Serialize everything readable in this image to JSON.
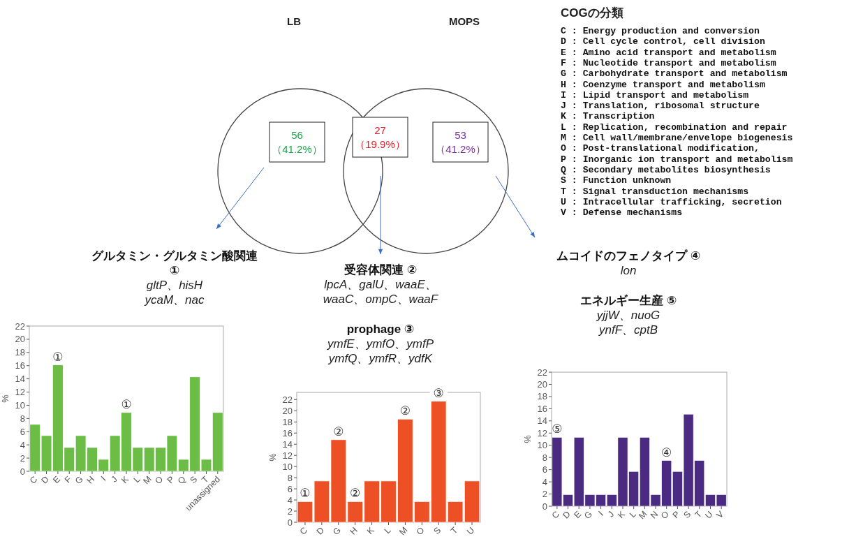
{
  "chart_data": [
    {
      "type": "other",
      "series": [
        {
          "name": "LB"
        },
        {
          "name": "MOPS"
        }
      ],
      "annotations": [
        "56",
        "（41.2%）",
        "27",
        "（19.9%）",
        "53",
        "（41.2%）"
      ],
      "colors": [
        "#1aa64b",
        "#e8202a",
        "#7b2f9e"
      ]
    },
    {
      "type": "other",
      "title": "COGの分類",
      "annotations": [
        "C : Energy production and conversion",
        "D : Cell cycle control, cell division",
        "E : Amino acid transport and metabolism",
        "F : Nucleotide transport and metabolism",
        "G : Carbohydrate transport and metabolism",
        "H : Coenzyme transport and metabolism",
        "I : Lipid transport and metabolism",
        "J : Translation, ribosomal structure",
        "K : Transcription",
        "L : Replication, recombination and repair",
        "M : Cell wall/membrane/envelope biogenesis",
        "O : Post-translational modification,",
        "P : Inorganic ion transport and metabolism",
        "Q : Secondary metabolites biosynthesis",
        "S : Function unknown",
        "T : Signal transduction mechanisms",
        "U : Intracellular trafficking, secretion",
        "V : Defense mechanisms"
      ]
    },
    {
      "type": "bar",
      "ylabel": "%",
      "ylim": [
        0,
        22
      ],
      "yticks": [
        0,
        2,
        4,
        6,
        8,
        10,
        12,
        14,
        16,
        18,
        20,
        22
      ],
      "categories": [
        "C",
        "D",
        "E",
        "F",
        "G",
        "H",
        "I",
        "J",
        "K",
        "L",
        "M",
        "O",
        "P",
        "Q",
        "S",
        "T",
        "unassigned"
      ],
      "series": [
        {
          "color": "#6cbd45",
          "values": [
            7.1,
            5.4,
            16.1,
            3.6,
            5.4,
            3.6,
            1.8,
            5.4,
            8.9,
            3.6,
            3.6,
            3.6,
            5.4,
            1.8,
            14.3,
            1.8,
            8.9
          ]
        }
      ],
      "annotations": [
        "グルタミン・グルタミン酸関連 ①",
        "gltP、hisH",
        "ycaM、nac",
        {
          "text": "①",
          "x": "E",
          "y": 16.1
        },
        {
          "text": "①",
          "x": "K",
          "y": 8.9
        }
      ]
    },
    {
      "type": "bar",
      "ylabel": "%",
      "ylim": [
        0,
        23.3
      ],
      "yticks": [
        0,
        2,
        4,
        6,
        8,
        10,
        12,
        14,
        16,
        18,
        20,
        22
      ],
      "categories": [
        "C",
        "D",
        "G",
        "H",
        "K",
        "L",
        "M",
        "O",
        "S",
        "T",
        "U"
      ],
      "series": [
        {
          "color": "#ee5026",
          "values": [
            3.7,
            7.4,
            14.8,
            3.7,
            7.4,
            7.4,
            18.5,
            3.7,
            21.7,
            3.7,
            7.4
          ]
        }
      ],
      "annotations": [
        "受容体関連 ②",
        "lpcA、galU、waaE、",
        "waaC、ompC、waaF",
        "prophage ③",
        "ymfE、ymfO、ymfP",
        "ymfQ、ymfR、ydfK",
        {
          "text": "①",
          "x": "C",
          "y": 3.7
        },
        {
          "text": "②",
          "x": "G",
          "y": 14.8
        },
        {
          "text": "②",
          "x": "H",
          "y": 3.7
        },
        {
          "text": "②",
          "x": "M",
          "y": 18.5
        },
        {
          "text": "③",
          "x": "S",
          "y": 21.7
        }
      ]
    },
    {
      "type": "bar",
      "ylabel": "%",
      "ylim": [
        0,
        22
      ],
      "yticks": [
        0,
        2,
        4,
        6,
        8,
        10,
        12,
        14,
        16,
        18,
        20,
        22
      ],
      "categories": [
        "C",
        "D",
        "E",
        "G",
        "I",
        "J",
        "K",
        "L",
        "M",
        "N",
        "O",
        "P",
        "S",
        "T",
        "U",
        "V"
      ],
      "series": [
        {
          "color": "#4b2a82",
          "values": [
            11.3,
            1.9,
            11.3,
            1.9,
            1.9,
            1.9,
            11.3,
            5.7,
            11.3,
            1.9,
            7.5,
            5.7,
            15.1,
            7.5,
            1.9,
            1.9
          ]
        }
      ],
      "annotations": [
        "ムコイドのフェノタイプ ④",
        "lon",
        "エネルギー生産 ⑤",
        "yjjW、nuoG",
        "ynfF、cptB",
        {
          "text": "⑤",
          "x": "C",
          "y": 11.3
        },
        {
          "text": "④",
          "x": "O",
          "y": 7.5
        }
      ]
    }
  ]
}
